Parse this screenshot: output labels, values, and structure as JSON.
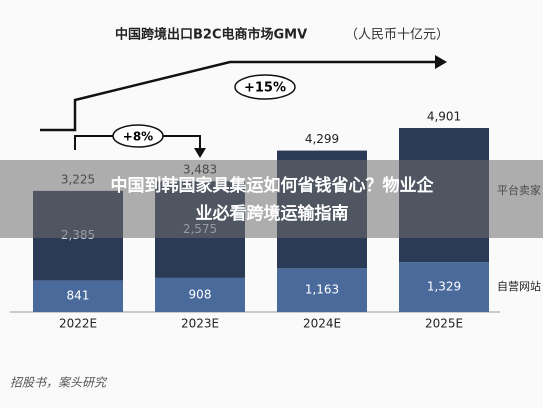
{
  "chart_data": {
    "type": "stacked_bar",
    "title": "中国跨境出口B2C电商市场GMV",
    "subtitle": "（人民币十亿元）",
    "categories": [
      "2022E",
      "2023E",
      "2024E",
      "2025E"
    ],
    "series": [
      {
        "name": "自营网站",
        "color": "#4a6a9c",
        "values": [
          841,
          908,
          1163,
          1329
        ],
        "value_labels": [
          "841",
          "908",
          "1,163",
          "1,329"
        ]
      },
      {
        "name": "平台卖家",
        "color": "#2b3a55",
        "values": [
          2385,
          2575,
          3136,
          3572
        ],
        "value_labels": [
          "2,385",
          "2,575",
          null,
          null
        ]
      }
    ],
    "totals": {
      "values": [
        3225,
        3483,
        4299,
        4901
      ],
      "value_labels": [
        "3,225",
        "3,483",
        "4,299",
        "4,901"
      ]
    },
    "ylim": [
      0,
      5500
    ],
    "annotations": [
      "+8%",
      "+15%"
    ],
    "source": "招股书，案头研究",
    "banner": [
      "中国到韩国家具集运如何省钱省心？物业企",
      "业必看跨境运输指南"
    ]
  }
}
